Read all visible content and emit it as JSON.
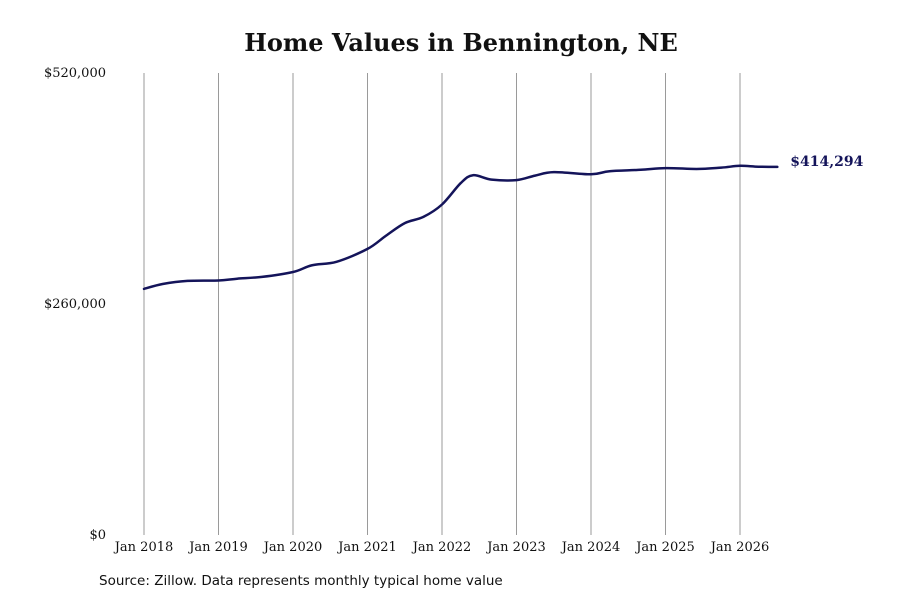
{
  "chart_data": {
    "type": "line",
    "title": "Home Values in Bennington, NE",
    "xlabel": "",
    "ylabel": "",
    "ylim": [
      0,
      520000
    ],
    "yticks": [
      {
        "value": 0,
        "label": "$0"
      },
      {
        "value": 260000,
        "label": "$260,000"
      },
      {
        "value": 520000,
        "label": "$520,000"
      }
    ],
    "xticks": [
      {
        "year": 2018,
        "label": "Jan 2018"
      },
      {
        "year": 2019,
        "label": "Jan 2019"
      },
      {
        "year": 2020,
        "label": "Jan 2020"
      },
      {
        "year": 2021,
        "label": "Jan 2021"
      },
      {
        "year": 2022,
        "label": "Jan 2022"
      },
      {
        "year": 2023,
        "label": "Jan 2023"
      },
      {
        "year": 2024,
        "label": "Jan 2024"
      },
      {
        "year": 2025,
        "label": "Jan 2025"
      },
      {
        "year": 2026,
        "label": "Jan 2026"
      }
    ],
    "grid": "vertical",
    "line_color": "#14145a",
    "end_label": "$414,294",
    "series": [
      {
        "name": "",
        "points": [
          {
            "x": "2018-01",
            "y": 277000
          },
          {
            "x": "2018-04",
            "y": 282500
          },
          {
            "x": "2018-08",
            "y": 286000
          },
          {
            "x": "2019-01",
            "y": 286500
          },
          {
            "x": "2019-04",
            "y": 288500
          },
          {
            "x": "2019-08",
            "y": 290500
          },
          {
            "x": "2020-01",
            "y": 296000
          },
          {
            "x": "2020-04",
            "y": 303500
          },
          {
            "x": "2020-08",
            "y": 307500
          },
          {
            "x": "2021-01",
            "y": 322000
          },
          {
            "x": "2021-04",
            "y": 337000
          },
          {
            "x": "2021-07",
            "y": 351000
          },
          {
            "x": "2021-10",
            "y": 358000
          },
          {
            "x": "2022-01",
            "y": 372000
          },
          {
            "x": "2022-04",
            "y": 396000
          },
          {
            "x": "2022-06",
            "y": 405000
          },
          {
            "x": "2022-09",
            "y": 400000
          },
          {
            "x": "2023-01",
            "y": 399500
          },
          {
            "x": "2023-04",
            "y": 404500
          },
          {
            "x": "2023-07",
            "y": 408500
          },
          {
            "x": "2024-01",
            "y": 406000
          },
          {
            "x": "2024-04",
            "y": 409500
          },
          {
            "x": "2024-09",
            "y": 411000
          },
          {
            "x": "2025-01",
            "y": 413000
          },
          {
            "x": "2025-06",
            "y": 412000
          },
          {
            "x": "2025-10",
            "y": 413500
          },
          {
            "x": "2026-01",
            "y": 415500
          },
          {
            "x": "2026-04",
            "y": 414500
          },
          {
            "x": "2026-07",
            "y": 414294
          }
        ]
      }
    ]
  },
  "caption": "Source: Zillow. Data represents monthly typical home value"
}
